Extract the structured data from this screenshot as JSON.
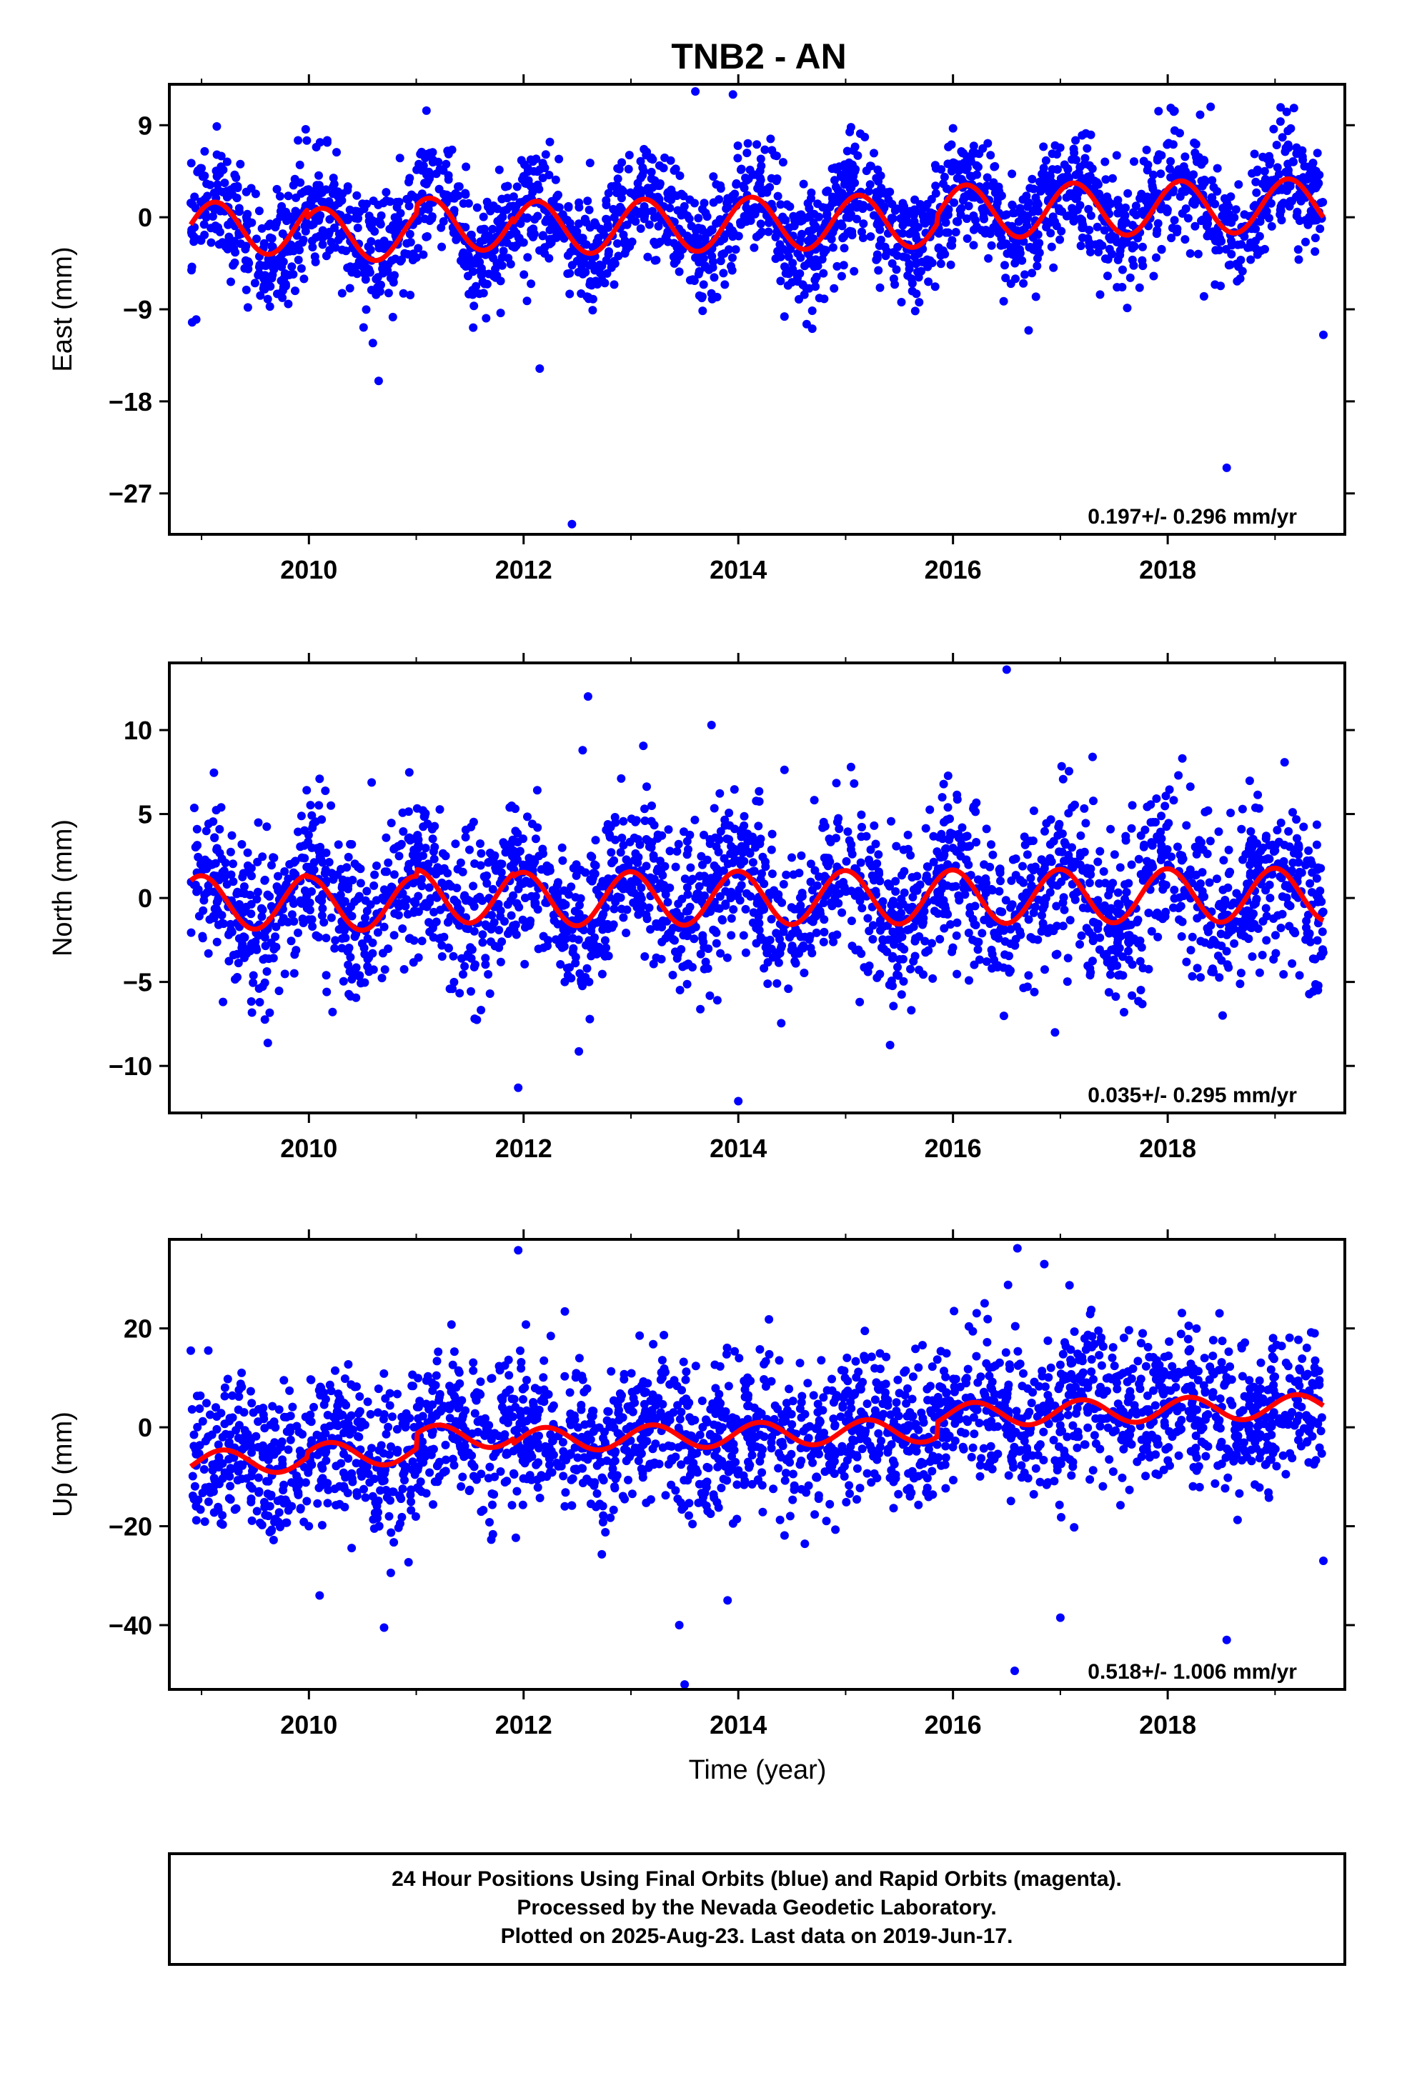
{
  "chart_data": {
    "title": "TNB2 - AN",
    "type": "scatter",
    "xlabel": "Time (year)",
    "xlim": [
      2008.7,
      2019.65
    ],
    "xticks": [
      2010,
      2012,
      2014,
      2016,
      2018
    ],
    "marker_color": "#0000ff",
    "fit_color": "#ff0000",
    "panels": [
      {
        "ylabel": "East (mm)",
        "ylim": [
          -31,
          13
        ],
        "yticks": [
          9,
          0,
          -9,
          -18,
          -27
        ],
        "rate": "0.197+/- 0.296 mm/yr",
        "fit": {
          "offset": -0.16,
          "trend": 0.197,
          "amp": 2.6,
          "phase": 0.8,
          "noise": 2.8,
          "segments": [
            [
              2008.9,
              2009.98,
              0.0
            ],
            [
              2009.98,
              2011.0,
              -0.8
            ],
            [
              2011.0,
              2011.9,
              0.0
            ],
            [
              2011.9,
              2015.85,
              -0.5
            ],
            [
              2015.85,
              2019.45,
              0.3
            ]
          ]
        },
        "sample": [
          [
            2008.9,
            1.4
          ],
          [
            2008.95,
            -10.0
          ],
          [
            2009.97,
            8.6
          ],
          [
            2010.65,
            -16.0
          ],
          [
            2012.15,
            -14.8
          ],
          [
            2012.45,
            -30.0
          ],
          [
            2013.6,
            12.3
          ],
          [
            2013.95,
            12.0
          ],
          [
            2015.05,
            8.8
          ],
          [
            2016.0,
            8.7
          ],
          [
            2018.4,
            10.8
          ],
          [
            2018.55,
            -24.5
          ],
          [
            2019.45,
            -11.5
          ]
        ]
      },
      {
        "ylabel": "North (mm)",
        "ylim": [
          -12.8,
          14
        ],
        "yticks": [
          10,
          5,
          0,
          -5,
          -10
        ],
        "rate": "0.035+/- 0.295 mm/yr",
        "fit": {
          "offset": 0.0,
          "trend": 0.035,
          "amp": 1.6,
          "phase": 1.6,
          "noise": 2.4,
          "segments": [
            [
              2008.9,
              2009.98,
              -0.1
            ],
            [
              2009.98,
              2011.0,
              -0.2
            ],
            [
              2011.0,
              2011.9,
              0.2
            ],
            [
              2011.9,
              2015.85,
              0.0
            ],
            [
              2015.85,
              2019.45,
              0.0
            ]
          ]
        },
        "sample": [
          [
            2010.1,
            7.1
          ],
          [
            2011.95,
            -11.3
          ],
          [
            2012.55,
            8.8
          ],
          [
            2012.6,
            12.0
          ],
          [
            2013.75,
            10.3
          ],
          [
            2014.0,
            -12.1
          ],
          [
            2015.05,
            7.8
          ],
          [
            2016.5,
            13.6
          ],
          [
            2016.95,
            -8.0
          ],
          [
            2017.3,
            8.4
          ],
          [
            2018.1,
            7.3
          ]
        ]
      },
      {
        "ylabel": "Up (mm)",
        "ylim": [
          -53,
          38
        ],
        "yticks": [
          20,
          0,
          -20,
          -40
        ],
        "rate": "0.518+/- 1.006 mm/yr",
        "fit": {
          "offset": -0.5,
          "trend": 0.518,
          "amp": 2.4,
          "phase": 0.3,
          "noise": 7.5,
          "segments": [
            [
              2008.9,
              2009.98,
              -4.0
            ],
            [
              2009.98,
              2011.0,
              -3.0
            ],
            [
              2011.0,
              2011.9,
              0.0
            ],
            [
              2011.9,
              2015.85,
              -1.0
            ],
            [
              2015.85,
              2019.45,
              2.0
            ]
          ]
        },
        "sample": [
          [
            2008.9,
            15.5
          ],
          [
            2008.95,
            -16.0
          ],
          [
            2010.1,
            -34.0
          ],
          [
            2010.7,
            -40.5
          ],
          [
            2011.95,
            35.8
          ],
          [
            2013.45,
            -40.0
          ],
          [
            2013.5,
            -52.0
          ],
          [
            2013.9,
            -35.0
          ],
          [
            2016.6,
            36.2
          ],
          [
            2016.85,
            33.0
          ],
          [
            2017.0,
            -38.5
          ],
          [
            2018.55,
            -43.0
          ],
          [
            2019.45,
            -27.0
          ]
        ]
      }
    ]
  },
  "footer": {
    "line1": "24 Hour Positions Using Final Orbits (blue) and Rapid Orbits (magenta).",
    "line2": "Processed by the Nevada Geodetic Laboratory.",
    "line3": "Plotted on 2025-Aug-23. Last data on 2019-Jun-17."
  }
}
